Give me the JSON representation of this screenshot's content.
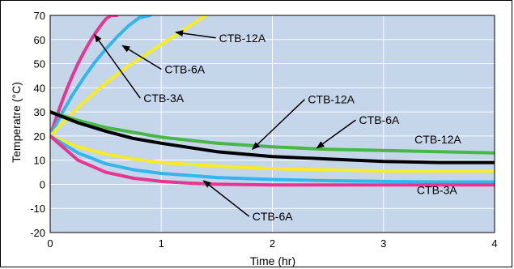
{
  "chart_data": {
    "type": "line",
    "xlabel": "Time (hr)",
    "ylabel": "Temperatre (°C)",
    "xlim": [
      0,
      4
    ],
    "ylim": [
      -20,
      70
    ],
    "x_ticks": [
      "0",
      "1",
      "2",
      "3",
      "4"
    ],
    "y_ticks": [
      "-20",
      "-10",
      "0",
      "10",
      "20",
      "30",
      "40",
      "50",
      "60",
      "70"
    ],
    "grid": true,
    "plot_background": "#c5d5ea",
    "grid_color": "#ffffff",
    "series": [
      {
        "name": "CTB-3A",
        "color": "#e8358f",
        "x": [
          0,
          0.05,
          0.1,
          0.15,
          0.2,
          0.25,
          0.3,
          0.35,
          0.4,
          0.45,
          0.5,
          0.55,
          0.6
        ],
        "y": [
          20,
          27,
          33.5,
          39.5,
          45,
          50,
          54.5,
          58.5,
          62.2,
          65.5,
          68.5,
          70,
          70
        ]
      },
      {
        "name": "CTB-6A",
        "color": "#33b6ec",
        "x": [
          0,
          0.1,
          0.2,
          0.3,
          0.4,
          0.5,
          0.6,
          0.7,
          0.8,
          0.9
        ],
        "y": [
          20,
          29,
          37,
          44,
          50.5,
          56,
          61,
          65.5,
          69,
          70
        ]
      },
      {
        "name": "CTB-12A",
        "color": "#f5ec25",
        "x": [
          0,
          0.1,
          0.2,
          0.3,
          0.4,
          0.5,
          0.6,
          0.7,
          0.8,
          0.9,
          1.0,
          1.1,
          1.2,
          1.3,
          1.4
        ],
        "y": [
          20,
          25,
          29.5,
          34,
          38,
          42,
          45.5,
          49,
          52,
          55,
          58,
          61,
          64,
          67,
          70
        ]
      },
      {
        "name": "CTB-12A",
        "color": "#49b648",
        "x": [
          0,
          0.25,
          0.5,
          0.75,
          1.0,
          1.5,
          2.0,
          2.5,
          3.0,
          3.5,
          4.0
        ],
        "y": [
          30,
          26.5,
          23.5,
          21.5,
          19.5,
          17,
          15.5,
          14.5,
          14,
          13.5,
          13
        ]
      },
      {
        "name": "CTB-12A",
        "color": "#000000",
        "x": [
          0,
          0.25,
          0.5,
          0.75,
          1.0,
          1.5,
          2.0,
          2.5,
          3.0,
          3.5,
          4.0
        ],
        "y": [
          30,
          25.5,
          22,
          19,
          17,
          13.5,
          11.5,
          10.5,
          9.5,
          9,
          9
        ]
      },
      {
        "name": "CTB-6A",
        "color": "#f5ec25",
        "x": [
          0,
          0.25,
          0.5,
          0.75,
          1.0,
          1.5,
          2.0,
          2.5,
          3.0,
          3.5,
          4.0
        ],
        "y": [
          20,
          15.5,
          12.5,
          10.5,
          9,
          7.5,
          6.5,
          6,
          5.5,
          5.5,
          5.5
        ]
      },
      {
        "name": "CTB-3A",
        "color": "#33b6ec",
        "x": [
          0,
          0.25,
          0.5,
          0.75,
          1.0,
          1.5,
          2.0,
          2.5,
          3.0,
          3.5,
          4.0
        ],
        "y": [
          20,
          13,
          8.5,
          6,
          4.5,
          2.8,
          2,
          1.5,
          1.2,
          1,
          1
        ]
      },
      {
        "name": "CTB-6A",
        "color": "#e8358f",
        "x": [
          0,
          0.25,
          0.5,
          0.75,
          1.0,
          1.25,
          1.5,
          2.0,
          2.5,
          3.0,
          3.5,
          4.0
        ],
        "y": [
          20,
          10,
          5,
          2.5,
          1.2,
          0.5,
          0,
          -0.3,
          -0.3,
          -0.3,
          -0.3,
          -0.3
        ]
      }
    ],
    "annotations": [
      {
        "text": "CTB-12A",
        "x": 1.52,
        "y": 59,
        "arrow_to": [
          1.13,
          63
        ]
      },
      {
        "text": "CTB-6A",
        "x": 1.03,
        "y": 46,
        "arrow_to": [
          0.65,
          57.5
        ]
      },
      {
        "text": "CTB-3A",
        "x": 0.84,
        "y": 34,
        "arrow_to": [
          0.4,
          62
        ]
      },
      {
        "text": "CTB-12A",
        "x": 2.32,
        "y": 33.5,
        "arrow_to": [
          1.82,
          14.5
        ]
      },
      {
        "text": "CTB-6A",
        "x": 2.78,
        "y": 25,
        "arrow_to": [
          2.4,
          15
        ]
      },
      {
        "text": "CTB-12A",
        "x": 3.28,
        "y": 17,
        "arrow_to": null
      },
      {
        "text": "CTB-3A",
        "x": 3.3,
        "y": -4,
        "arrow_to": null
      },
      {
        "text": "CTB-6A",
        "x": 1.82,
        "y": -15,
        "arrow_to": [
          1.38,
          1.5
        ]
      }
    ]
  }
}
